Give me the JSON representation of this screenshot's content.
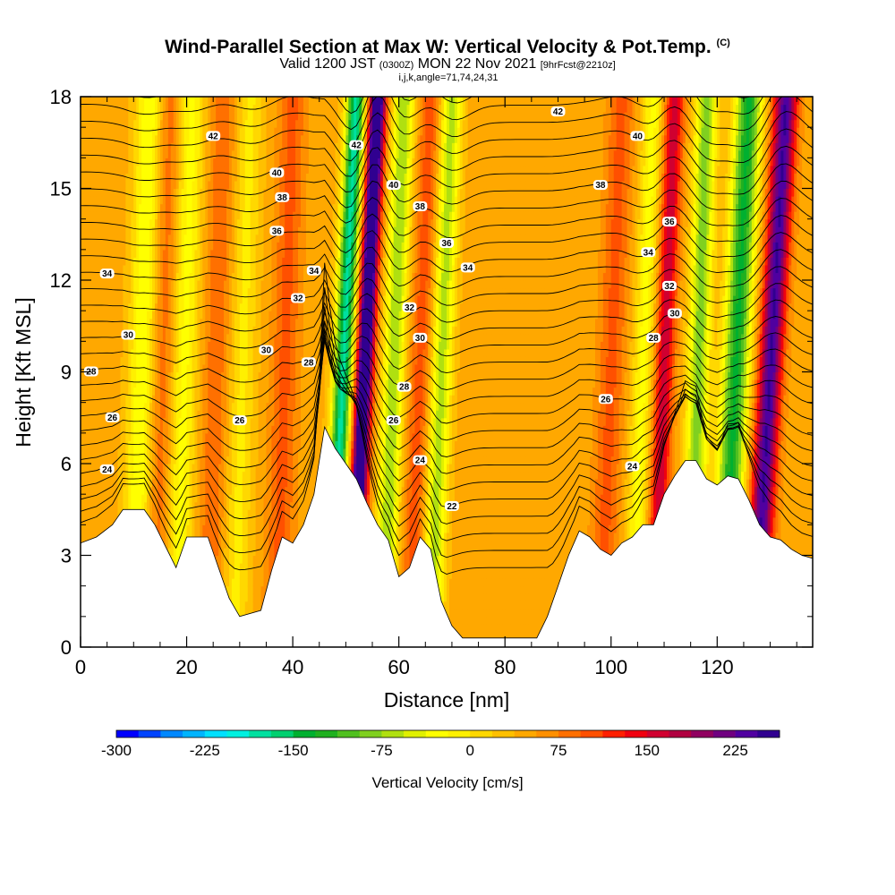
{
  "chart_data": {
    "type": "heatmap",
    "title": "Wind-Parallel Section at Max W: Vertical Velocity & Pot.Temp.",
    "title_mark": "(C)",
    "subtitle_prefix": "Valid 1200 JST",
    "subtitle_utc": "(0300Z)",
    "subtitle_date": "MON 22 Nov 2021",
    "subtitle_fcst": "[9hrFcst@2210z]",
    "subtitle2": "i,j,k,angle=71,74,24,31",
    "xlabel": "Distance [nm]",
    "ylabel": "Height [Kft MSL]",
    "xlim": [
      0,
      138
    ],
    "ylim": [
      0,
      18
    ],
    "xticks": [
      "0",
      "20",
      "40",
      "60",
      "80",
      "100",
      "120"
    ],
    "yticks": [
      "0",
      "3",
      "6",
      "9",
      "12",
      "15",
      "18"
    ],
    "colorbar": {
      "title": "Vertical Velocity [cm/s]",
      "min": -300,
      "max": 262.5,
      "step": 18.75,
      "labels": [
        "-300",
        "-225",
        "-150",
        "-75",
        "0",
        "75",
        "150",
        "225"
      ],
      "colors": [
        "#0000ff",
        "#0044ff",
        "#0088ff",
        "#00b4ff",
        "#00e0ff",
        "#00f0e0",
        "#00e0a0",
        "#00d070",
        "#00b030",
        "#20b020",
        "#50c020",
        "#80d020",
        "#b0e010",
        "#e0f000",
        "#ffff00",
        "#fff000",
        "#ffd800",
        "#ffc000",
        "#ffa800",
        "#ff9000",
        "#ff7000",
        "#ff5000",
        "#ff2000",
        "#f00010",
        "#d00030",
        "#b00040",
        "#900060",
        "#700080",
        "#5000a0",
        "#300090"
      ]
    },
    "terrain_heights_kft": [
      [
        0,
        3.4
      ],
      [
        3,
        3.6
      ],
      [
        6,
        4
      ],
      [
        8,
        4.5
      ],
      [
        12,
        4.5
      ],
      [
        14,
        4
      ],
      [
        16,
        3.3
      ],
      [
        18,
        2.6
      ],
      [
        20,
        3.6
      ],
      [
        24,
        3.6
      ],
      [
        26,
        2.6
      ],
      [
        28,
        1.6
      ],
      [
        30,
        1
      ],
      [
        34,
        1.2
      ],
      [
        36,
        2.5
      ],
      [
        38,
        3.6
      ],
      [
        40,
        3.4
      ],
      [
        42,
        4
      ],
      [
        44,
        5
      ],
      [
        46,
        7.2
      ],
      [
        48,
        6.5
      ],
      [
        50,
        6
      ],
      [
        52,
        5.5
      ],
      [
        54,
        4.7
      ],
      [
        56,
        4
      ],
      [
        58,
        3.5
      ],
      [
        60,
        2.3
      ],
      [
        62,
        2.6
      ],
      [
        64,
        3.6
      ],
      [
        66,
        3.2
      ],
      [
        68,
        1.5
      ],
      [
        70,
        0.7
      ],
      [
        72,
        0.3
      ],
      [
        86,
        0.3
      ],
      [
        88,
        1
      ],
      [
        90,
        2
      ],
      [
        92,
        3
      ],
      [
        94,
        3.8
      ],
      [
        96,
        3.6
      ],
      [
        98,
        3.2
      ],
      [
        100,
        3
      ],
      [
        102,
        3.4
      ],
      [
        104,
        3.6
      ],
      [
        106,
        4
      ],
      [
        108,
        4
      ],
      [
        110,
        5
      ],
      [
        112,
        5.6
      ],
      [
        114,
        6.1
      ],
      [
        116,
        6.1
      ],
      [
        118,
        5.5
      ],
      [
        120,
        5.3
      ],
      [
        122,
        5.6
      ],
      [
        124,
        5.5
      ],
      [
        126,
        4.8
      ],
      [
        128,
        4
      ],
      [
        130,
        3.6
      ],
      [
        132,
        3.5
      ],
      [
        134,
        3.2
      ],
      [
        136,
        3
      ],
      [
        138,
        2.9
      ]
    ],
    "vertical_velocity_bands": [
      {
        "x": 10,
        "w": 2.5,
        "amp": -80,
        "tilt": 3
      },
      {
        "x": 14,
        "w": 2.2,
        "amp": 45,
        "tilt": 3
      },
      {
        "x": 18,
        "w": 2.5,
        "amp": -70,
        "tilt": 3
      },
      {
        "x": 24,
        "w": 2.5,
        "amp": 45,
        "tilt": 3
      },
      {
        "x": 29,
        "w": 2.5,
        "amp": -50,
        "tilt": 3
      },
      {
        "x": 37,
        "w": 2.5,
        "amp": 55,
        "tilt": 3
      },
      {
        "x": 47,
        "w": 1.8,
        "amp": -220,
        "tilt": 5
      },
      {
        "x": 51,
        "w": 1.6,
        "amp": 262,
        "tilt": 5
      },
      {
        "x": 57,
        "w": 2.0,
        "amp": -120,
        "tilt": 4
      },
      {
        "x": 62,
        "w": 2.0,
        "amp": 60,
        "tilt": 4
      },
      {
        "x": 66,
        "w": 2.0,
        "amp": -110,
        "tilt": 4
      },
      {
        "x": 98,
        "w": 2.5,
        "amp": 55,
        "tilt": 4
      },
      {
        "x": 104,
        "w": 2.0,
        "amp": -70,
        "tilt": 4
      },
      {
        "x": 108,
        "w": 1.8,
        "amp": 120,
        "tilt": 4
      },
      {
        "x": 115,
        "w": 2.0,
        "amp": -130,
        "tilt": 3
      },
      {
        "x": 121,
        "w": 2.5,
        "amp": -180,
        "tilt": 5
      },
      {
        "x": 127,
        "w": 2.2,
        "amp": 200,
        "tilt": 6
      }
    ],
    "contour_labels": [
      {
        "x": 25,
        "y": 16.7,
        "t": "42"
      },
      {
        "x": 37,
        "y": 15.5,
        "t": "40"
      },
      {
        "x": 38,
        "y": 14.7,
        "t": "38"
      },
      {
        "x": 37,
        "y": 13.6,
        "t": "36"
      },
      {
        "x": 5,
        "y": 12.2,
        "t": "34"
      },
      {
        "x": 44,
        "y": 12.3,
        "t": "34"
      },
      {
        "x": 41,
        "y": 11.4,
        "t": "32"
      },
      {
        "x": 9,
        "y": 10.2,
        "t": "30"
      },
      {
        "x": 35,
        "y": 9.7,
        "t": "30"
      },
      {
        "x": 43,
        "y": 9.3,
        "t": "28"
      },
      {
        "x": 2,
        "y": 9,
        "t": "28"
      },
      {
        "x": 6,
        "y": 7.5,
        "t": "26"
      },
      {
        "x": 30,
        "y": 7.4,
        "t": "26"
      },
      {
        "x": 5,
        "y": 5.8,
        "t": "24"
      },
      {
        "x": 52,
        "y": 16.4,
        "t": "42"
      },
      {
        "x": 59,
        "y": 15.1,
        "t": "40"
      },
      {
        "x": 64,
        "y": 14.4,
        "t": "38"
      },
      {
        "x": 69,
        "y": 13.2,
        "t": "36"
      },
      {
        "x": 73,
        "y": 12.4,
        "t": "34"
      },
      {
        "x": 62,
        "y": 11.1,
        "t": "32"
      },
      {
        "x": 64,
        "y": 10.1,
        "t": "30"
      },
      {
        "x": 61,
        "y": 8.5,
        "t": "28"
      },
      {
        "x": 59,
        "y": 7.4,
        "t": "26"
      },
      {
        "x": 64,
        "y": 6.1,
        "t": "24"
      },
      {
        "x": 70,
        "y": 4.6,
        "t": "22"
      },
      {
        "x": 90,
        "y": 17.5,
        "t": "42"
      },
      {
        "x": 105,
        "y": 16.7,
        "t": "40"
      },
      {
        "x": 98,
        "y": 15.1,
        "t": "38"
      },
      {
        "x": 111,
        "y": 13.9,
        "t": "36"
      },
      {
        "x": 107,
        "y": 12.9,
        "t": "34"
      },
      {
        "x": 111,
        "y": 11.8,
        "t": "32"
      },
      {
        "x": 112,
        "y": 10.9,
        "t": "30"
      },
      {
        "x": 108,
        "y": 10.1,
        "t": "28"
      },
      {
        "x": 99,
        "y": 8.1,
        "t": "26"
      },
      {
        "x": 104,
        "y": 5.9,
        "t": "24"
      }
    ]
  }
}
